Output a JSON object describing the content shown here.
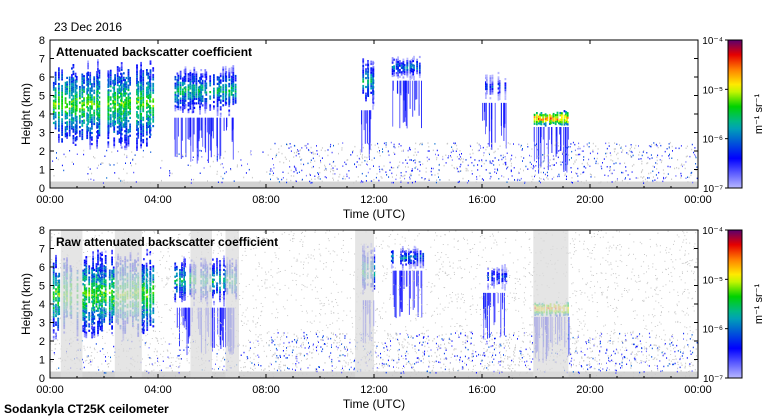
{
  "date_label": "23 Dec 2016",
  "footer_label": "Sodankyla CT25K ceilometer",
  "colorbar": {
    "unit_label": "m⁻¹ sr⁻¹",
    "tick_labels": [
      "10⁻⁴",
      "10⁻⁵",
      "10⁻⁶",
      "10⁻⁷"
    ],
    "tick_exponents": [
      -4,
      -5,
      -6,
      -7
    ],
    "colors": [
      "#1a0030",
      "#7a0080",
      "#ff0000",
      "#ff8000",
      "#ffff00",
      "#00e000",
      "#00b0b0",
      "#0000ff",
      "#b8b8ff",
      "#ffffff"
    ]
  },
  "chart_data": [
    {
      "type": "heatmap",
      "title": "Attenuated backscatter coefficient",
      "xlabel": "Time (UTC)",
      "ylabel": "Height (km)",
      "xlim_hours": [
        0,
        24
      ],
      "ylim_km": [
        0,
        8
      ],
      "x_tick_labels": [
        "00:00",
        "04:00",
        "08:00",
        "12:00",
        "16:00",
        "20:00",
        "00:00"
      ],
      "y_tick_labels": [
        "0",
        "1",
        "2",
        "3",
        "4",
        "5",
        "6",
        "7",
        "8"
      ],
      "colorscale": "log10, 1e-7 to 1e-4 m^-1 sr^-1",
      "features": [
        {
          "kind": "cloud",
          "t_start": 0.1,
          "t_end": 3.8,
          "h_low": 2.0,
          "h_high": 6.9,
          "log10_peak": -5.0
        },
        {
          "kind": "cloud",
          "t_start": 4.6,
          "t_end": 6.9,
          "h_low": 3.8,
          "h_high": 6.6,
          "log10_peak": -5.3
        },
        {
          "kind": "cloud",
          "t_start": 11.5,
          "t_end": 12.0,
          "h_low": 4.2,
          "h_high": 7.2,
          "log10_peak": -5.4
        },
        {
          "kind": "cloud",
          "t_start": 12.6,
          "t_end": 13.8,
          "h_low": 5.8,
          "h_high": 7.1,
          "log10_peak": -5.6
        },
        {
          "kind": "cloud",
          "t_start": 16.0,
          "t_end": 16.9,
          "h_low": 4.6,
          "h_high": 6.2,
          "log10_peak": -5.9
        },
        {
          "kind": "cloud",
          "t_start": 17.9,
          "t_end": 19.2,
          "h_low": 3.3,
          "h_high": 4.1,
          "log10_peak": -4.3
        },
        {
          "kind": "low_haze",
          "t_start": 0.0,
          "t_end": 24.0,
          "h_low": 0.0,
          "h_high": 2.5,
          "log10_peak": -6.4
        }
      ]
    },
    {
      "type": "heatmap",
      "title": "Raw attenuated backscatter coefficient",
      "xlabel": "Time (UTC)",
      "ylabel": "Height (km)",
      "xlim_hours": [
        0,
        24
      ],
      "ylim_km": [
        0,
        8
      ],
      "x_tick_labels": [
        "00:00",
        "04:00",
        "08:00",
        "12:00",
        "16:00",
        "20:00",
        "00:00"
      ],
      "y_tick_labels": [
        "0",
        "1",
        "2",
        "3",
        "4",
        "5",
        "6",
        "7",
        "8"
      ],
      "colorscale": "log10, 1e-7 to 1e-4 m^-1 sr^-1",
      "features": [
        {
          "kind": "cloud",
          "t_start": 0.1,
          "t_end": 3.8,
          "h_low": 2.0,
          "h_high": 6.9,
          "log10_peak": -5.0
        },
        {
          "kind": "cloud",
          "t_start": 4.6,
          "t_end": 6.9,
          "h_low": 3.8,
          "h_high": 6.6,
          "log10_peak": -5.3
        },
        {
          "kind": "cloud",
          "t_start": 11.5,
          "t_end": 12.0,
          "h_low": 4.2,
          "h_high": 7.2,
          "log10_peak": -5.4
        },
        {
          "kind": "cloud",
          "t_start": 12.6,
          "t_end": 13.8,
          "h_low": 5.8,
          "h_high": 7.1,
          "log10_peak": -5.6
        },
        {
          "kind": "cloud",
          "t_start": 16.0,
          "t_end": 16.9,
          "h_low": 4.6,
          "h_high": 6.2,
          "log10_peak": -5.9
        },
        {
          "kind": "cloud",
          "t_start": 17.9,
          "t_end": 19.2,
          "h_low": 3.3,
          "h_high": 4.1,
          "log10_peak": -4.3
        },
        {
          "kind": "low_haze",
          "t_start": 0.0,
          "t_end": 24.0,
          "h_low": 0.0,
          "h_high": 2.5,
          "log10_peak": -6.4
        },
        {
          "kind": "noise",
          "t_start": 0.0,
          "t_end": 24.0,
          "h_low": 0.0,
          "h_high": 8.0,
          "log10_peak": -6.8
        }
      ]
    }
  ]
}
